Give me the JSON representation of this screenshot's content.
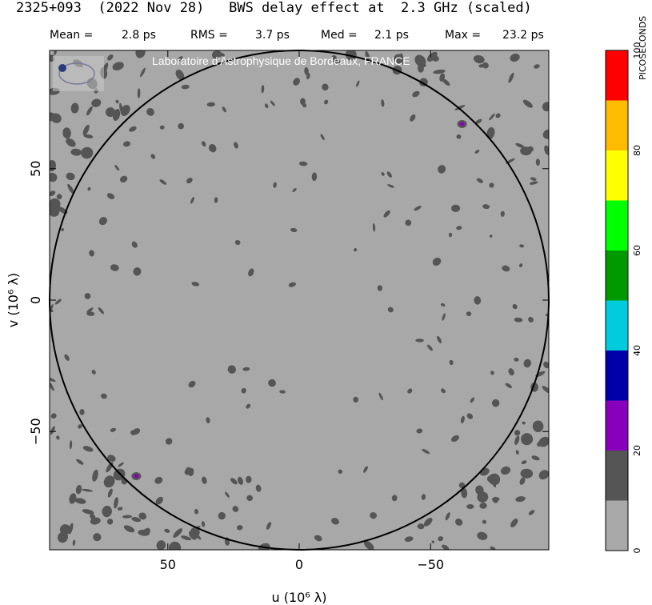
{
  "title": "2325+093  (2022 Nov 28)   BWS delay effect at  2.3 GHz (scaled)",
  "stats": [
    {
      "label": "Mean =",
      "value": "2.8 ps"
    },
    {
      "label": "RMS =",
      "value": "3.7 ps"
    },
    {
      "label": "Med =",
      "value": "2.1 ps"
    },
    {
      "label": "Max =",
      "value": "23.2 ps"
    }
  ],
  "credit": "Laboratoire d'Astrophysique de Bordeaux, FRANCE",
  "logo_text": "LAB",
  "colors": {
    "background_level": "#a8a8a8",
    "level_1": "#555555",
    "level_2": "#8800bb",
    "circle": "#000000"
  },
  "chart_data": {
    "type": "heatmap",
    "xlabel": "u  (10⁶ λ)",
    "ylabel": "v  (10⁶ λ)",
    "xlim": [
      95,
      -95
    ],
    "ylim": [
      -95,
      95
    ],
    "x_ticks": [
      {
        "value": 50,
        "label": "50"
      },
      {
        "value": 0,
        "label": "0"
      },
      {
        "value": -50,
        "label": "−50"
      }
    ],
    "y_ticks": [
      {
        "value": 50,
        "label": "50"
      },
      {
        "value": 0,
        "label": "0"
      },
      {
        "value": -50,
        "label": "−50"
      }
    ],
    "circle_radius": 95,
    "hotspots": [
      {
        "u": -62,
        "v": 67,
        "value": 23
      },
      {
        "u": 62,
        "v": -67,
        "value": 23
      }
    ],
    "colorbar": {
      "title": "PICOSECONDS",
      "min": 0,
      "max": 100,
      "tick_labels": [
        "0",
        "20",
        "40",
        "60",
        "80",
        "100"
      ],
      "tick_values": [
        0,
        20,
        40,
        60,
        80,
        100
      ],
      "levels": [
        {
          "from": 0,
          "to": 10,
          "color": "#a8a8a8"
        },
        {
          "from": 10,
          "to": 20,
          "color": "#555555"
        },
        {
          "from": 20,
          "to": 30,
          "color": "#8800bb"
        },
        {
          "from": 30,
          "to": 40,
          "color": "#0000aa"
        },
        {
          "from": 40,
          "to": 50,
          "color": "#00ccdd"
        },
        {
          "from": 50,
          "to": 60,
          "color": "#009900"
        },
        {
          "from": 60,
          "to": 70,
          "color": "#00ff00"
        },
        {
          "from": 70,
          "to": 80,
          "color": "#ffff00"
        },
        {
          "from": 80,
          "to": 90,
          "color": "#ffbb00"
        },
        {
          "from": 90,
          "to": 100,
          "color": "#ff0000"
        }
      ]
    }
  }
}
